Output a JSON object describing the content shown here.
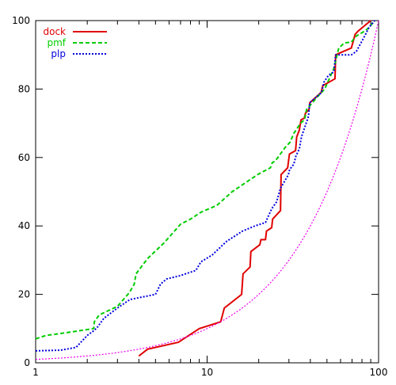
{
  "chart_data": {
    "type": "line",
    "xscale": "log",
    "xlim": [
      1,
      100
    ],
    "ylim": [
      0,
      100
    ],
    "xticks": [
      "1",
      "10",
      "100"
    ],
    "yticks": [
      "0",
      "20",
      "40",
      "60",
      "80",
      "100"
    ],
    "legend_position": "top-left",
    "series": [
      {
        "name": "dock",
        "color": "#e00000",
        "dash": "solid",
        "x": [
          4.0,
          4.5,
          6.8,
          9.0,
          12.0,
          12.6,
          15.9,
          16.2,
          17.8,
          18.0,
          20.3,
          20.6,
          21.9,
          22.2,
          23.8,
          24.1,
          26.8,
          27.0,
          29.5,
          30.2,
          32.8,
          33.3,
          34.5,
          35.3,
          36.9,
          37.5,
          39.3,
          39.7,
          46.2,
          47.3,
          55.7,
          56.2,
          69.4,
          73.0,
          76.2,
          90.0
        ],
        "y": [
          2,
          4,
          6,
          10,
          12,
          16,
          20,
          26,
          28,
          32.5,
          34.5,
          36,
          36,
          38.5,
          39.5,
          42,
          44.5,
          55,
          57,
          61,
          62,
          66,
          68,
          71,
          71.5,
          73,
          74,
          76,
          79,
          81,
          83,
          90,
          92,
          96,
          97,
          100
        ]
      },
      {
        "name": "pmf",
        "color": "#00cc00",
        "dash": "dashed",
        "x": [
          1.0,
          1.15,
          1.37,
          2.18,
          2.2,
          2.35,
          3.0,
          3.52,
          3.76,
          3.85,
          4.5,
          5.6,
          7.0,
          8.0,
          9.2,
          11.4,
          14.0,
          19.7,
          23.4,
          24.0,
          25.0,
          28.6,
          30.5,
          32.0,
          33.0,
          35.0,
          37.0,
          38.0,
          44.5,
          48.5,
          54.8,
          58.6,
          63.2,
          69.3,
          74.1,
          83.5,
          88.0,
          94.8
        ],
        "y": [
          7,
          8,
          8.5,
          10,
          12,
          14,
          16.5,
          20.5,
          23,
          26,
          30.5,
          35,
          40.5,
          42,
          44,
          46,
          50,
          55,
          57,
          58.5,
          59,
          63,
          64.5,
          67,
          68,
          70,
          71,
          74,
          78,
          80,
          86,
          92,
          93.5,
          93.7,
          95.5,
          97,
          98,
          100
        ]
      },
      {
        "name": "plp",
        "color": "#0000dd",
        "dash": "dotted",
        "x": [
          1.0,
          1.4,
          1.72,
          2.0,
          2.2,
          2.3,
          2.5,
          3.0,
          3.55,
          5.0,
          5.35,
          5.8,
          7.0,
          8.6,
          9.2,
          10.7,
          13.0,
          16.1,
          19.0,
          21.9,
          23.8,
          25.4,
          26.8,
          29.8,
          30.3,
          32.0,
          33.0,
          34.5,
          35.5,
          39.0,
          39.7,
          46.5,
          48.0,
          51.0,
          54.8,
          56.2,
          69.4,
          74.2,
          82.0,
          88.0,
          94.9
        ],
        "y": [
          3.5,
          3.7,
          4.5,
          8,
          9.5,
          10.5,
          13,
          16,
          18.5,
          20,
          23,
          24.5,
          25.5,
          27,
          29.5,
          31.5,
          35.5,
          38.5,
          40,
          41,
          45,
          47,
          51,
          55,
          56.5,
          58,
          60.5,
          62.5,
          66,
          72,
          76,
          79,
          82,
          84,
          85,
          90,
          90,
          91,
          95,
          98,
          100
        ]
      },
      {
        "name": "",
        "color": "#ee00ee",
        "dash": "dotted",
        "function": "y = x"
      }
    ]
  }
}
